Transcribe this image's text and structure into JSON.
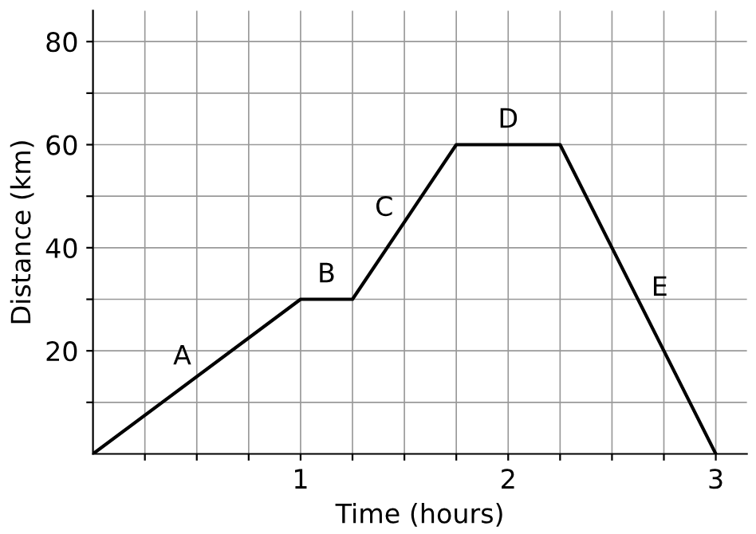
{
  "chart_data": {
    "type": "line",
    "xlabel": "Time (hours)",
    "ylabel": "Distance (km)",
    "x": [
      0,
      1,
      1.25,
      1.75,
      2.25,
      3
    ],
    "series": [
      {
        "color": "#000000",
        "values": [
          0,
          30,
          30,
          60,
          60,
          0
        ]
      }
    ],
    "xlim": [
      0,
      3.15
    ],
    "ylim": [
      0,
      86
    ],
    "xticks": [
      {
        "value": 0.25,
        "label": null
      },
      {
        "value": 0.5,
        "label": null
      },
      {
        "value": 0.75,
        "label": null
      },
      1,
      {
        "value": 1.25,
        "label": null
      },
      {
        "value": 1.5,
        "label": null
      },
      {
        "value": 1.75,
        "label": null
      },
      2,
      {
        "value": 2.25,
        "label": null
      },
      {
        "value": 2.5,
        "label": null
      },
      {
        "value": 2.75,
        "label": null
      },
      3
    ],
    "yticks": [
      {
        "value": 10,
        "label": null
      },
      20,
      {
        "value": 30,
        "label": null
      },
      40,
      {
        "value": 50,
        "label": null
      },
      60,
      {
        "value": 70,
        "label": null
      },
      80
    ],
    "grid": true,
    "marker": "none",
    "line_style": "solid",
    "annotations": [
      "A",
      "B",
      "C",
      "D",
      "E"
    ]
  }
}
